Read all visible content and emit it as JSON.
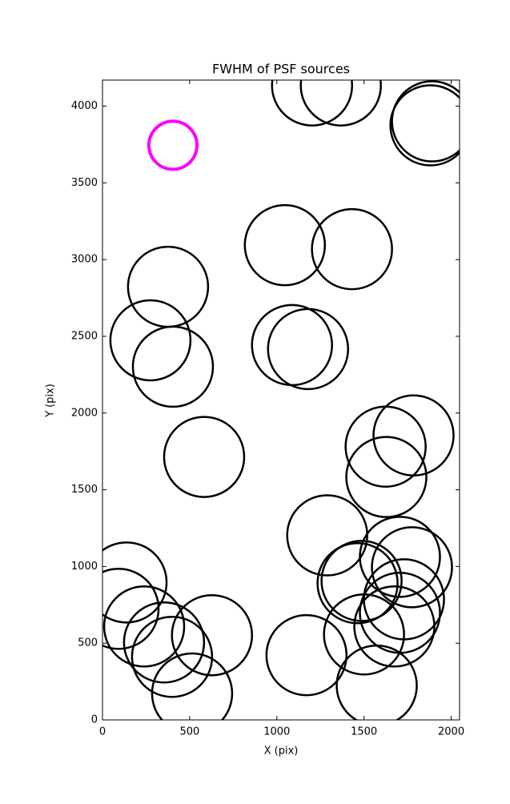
{
  "chart_data": {
    "type": "scatter",
    "title": "FWHM of PSF sources",
    "x_label": "X (pix)",
    "y_label": "Y (pix)",
    "xlim": [
      0,
      2048
    ],
    "ylim": [
      0,
      4170
    ],
    "xticks": [
      0,
      500,
      1000,
      1500,
      2000
    ],
    "yticks": [
      0,
      500,
      1000,
      1500,
      2000,
      2500,
      3000,
      3500,
      4000
    ],
    "series": [
      {
        "color": "#000000",
        "x": [
          1202,
          1367,
          1890,
          1881,
          1046,
          1431,
          376,
          275,
          404,
          1087,
          1179,
          583,
          1624,
          1784,
          1628,
          1289,
          1706,
          1775,
          1463,
          1486,
          1729,
          1706,
          1674,
          1500,
          1573,
          1170,
          138,
          92,
          239,
          353,
          399,
          628,
          514
        ],
        "y": [
          4135,
          4135,
          3901,
          3875,
          3094,
          3068,
          2823,
          2474,
          2302,
          2443,
          2417,
          1714,
          1781,
          1854,
          1583,
          1203,
          1063,
          995,
          891,
          906,
          786,
          698,
          609,
          557,
          224,
          422,
          896,
          724,
          609,
          505,
          411,
          552,
          172
        ]
      },
      {
        "color": "#ff00ff",
        "x": [
          404
        ],
        "y": [
          3745
        ]
      }
    ]
  }
}
